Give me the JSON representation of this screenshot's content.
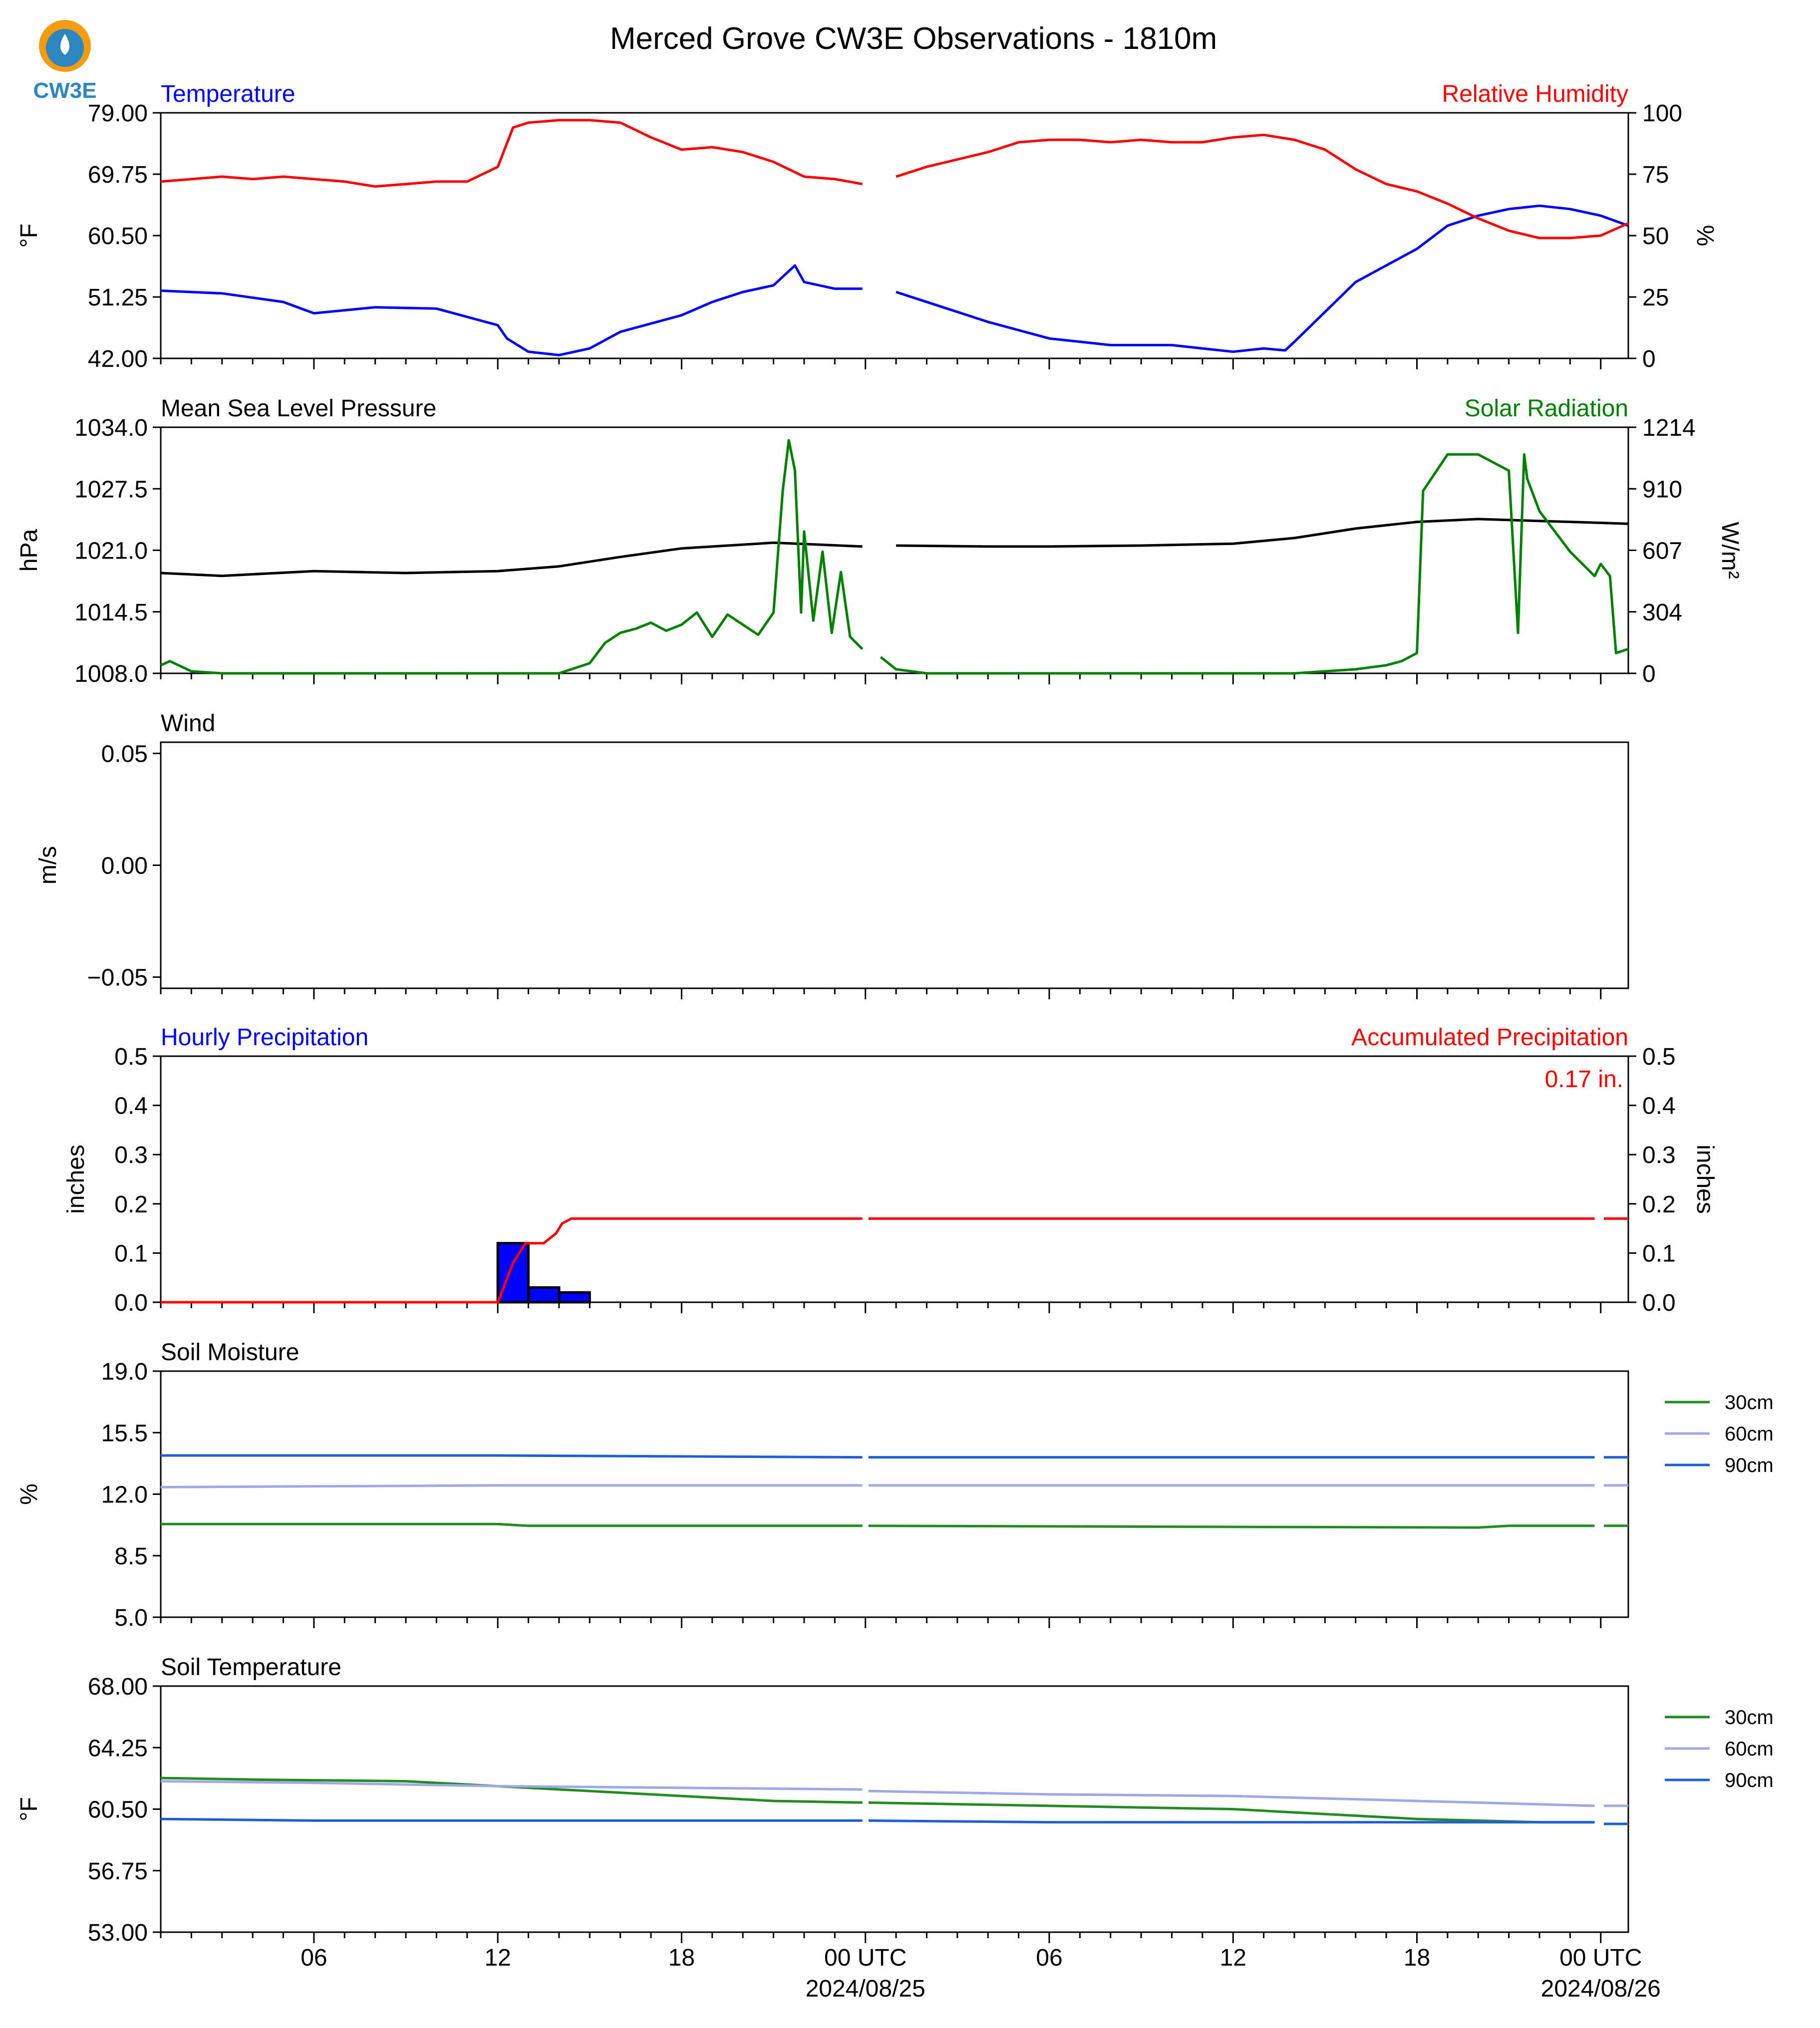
{
  "title": "Merced Grove CW3E Observations - 1810m",
  "logo": {
    "text": "CW3E",
    "colors": [
      "#F39C12",
      "#2E86C1"
    ]
  },
  "x_axis": {
    "major_ticks": [
      {
        "hour": 6,
        "label": "06"
      },
      {
        "hour": 12,
        "label": "12"
      },
      {
        "hour": 18,
        "label": "18"
      },
      {
        "hour": 24,
        "label": "00 UTC",
        "date": "2024/08/25"
      },
      {
        "hour": 30,
        "label": "06"
      },
      {
        "hour": 36,
        "label": "12"
      },
      {
        "hour": 42,
        "label": "18"
      },
      {
        "hour": 48,
        "label": "00 UTC",
        "date": "2024/08/26"
      }
    ],
    "range_hours": [
      1,
      48.9
    ]
  },
  "chart_data": [
    {
      "type": "line",
      "left_title": "Temperature",
      "left_title_color": "#0000FF",
      "right_title": "Relative Humidity",
      "right_title_color": "#FF0000",
      "ylabel": "°F",
      "ylabel_right": "%",
      "ylim": [
        42.0,
        79.0
      ],
      "yticks": [
        "42.00",
        "51.25",
        "60.50",
        "69.75",
        "79.00"
      ],
      "ylim_right": [
        0,
        100
      ],
      "yticks_right": [
        "0",
        "25",
        "50",
        "75",
        "100"
      ],
      "series": [
        {
          "name": "Temperature",
          "axis": "left",
          "color": "#0000FF",
          "x": [
            1,
            3,
            5,
            6,
            8,
            10,
            12,
            12.3,
            13,
            14,
            15,
            16,
            18,
            19,
            20,
            21,
            21.7,
            22,
            23,
            23.9,
            25,
            27,
            28,
            30,
            32,
            34,
            35,
            36,
            37,
            37.7,
            38,
            39,
            40,
            41,
            42,
            43,
            44,
            45,
            46,
            47,
            48,
            48.9
          ],
          "y": [
            52.2,
            51.8,
            50.5,
            48.8,
            49.7,
            49.5,
            47.0,
            45.0,
            43.0,
            42.5,
            43.5,
            46.0,
            48.5,
            50.5,
            52.0,
            53.0,
            56.0,
            53.5,
            52.5,
            52.5,
            52.0,
            49.0,
            47.5,
            45.0,
            44.0,
            44.0,
            43.5,
            43.0,
            43.5,
            43.2,
            44.5,
            49.0,
            53.5,
            56.0,
            58.5,
            62.0,
            63.5,
            64.5,
            65.0,
            64.5,
            63.5,
            62.0
          ]
        },
        {
          "name": "Relative Humidity",
          "axis": "right",
          "color": "#FF0000",
          "x": [
            1,
            3,
            4,
            5,
            7,
            8,
            9,
            10,
            11,
            11.5,
            12,
            12.5,
            13,
            14,
            15,
            16,
            17,
            18,
            19,
            20,
            21,
            22,
            23,
            23.9,
            25,
            26,
            27,
            28,
            29,
            30,
            31,
            32,
            33,
            34,
            35,
            36,
            37,
            38,
            39,
            40,
            41,
            42,
            43,
            44,
            45,
            46,
            47,
            48,
            48.9
          ],
          "y": [
            72,
            74,
            73,
            74,
            72,
            70,
            71,
            72,
            72,
            75,
            78,
            94,
            96,
            97,
            97,
            96,
            90,
            85,
            86,
            84,
            80,
            74,
            73,
            71,
            74,
            78,
            81,
            84,
            88,
            89,
            89,
            88,
            89,
            88,
            88,
            90,
            91,
            89,
            85,
            77,
            71,
            68,
            63,
            57,
            52,
            49,
            49,
            50,
            55
          ]
        }
      ]
    },
    {
      "type": "line",
      "left_title": "Mean Sea Level Pressure",
      "left_title_color": "#000000",
      "right_title": "Solar Radiation",
      "right_title_color": "#008000",
      "ylabel": "hPa",
      "ylabel_right": "W/m²",
      "ylim": [
        1008.0,
        1034.0
      ],
      "yticks": [
        "1008.0",
        "1014.5",
        "1021.0",
        "1027.5",
        "1034.0"
      ],
      "ylim_right": [
        0,
        1214
      ],
      "yticks_right": [
        "0",
        "304",
        "607",
        "910",
        "1214"
      ],
      "series": [
        {
          "name": "Mean Sea Level Pressure",
          "axis": "left",
          "color": "#000000",
          "x": [
            1,
            3,
            6,
            9,
            12,
            14,
            16,
            18,
            21,
            23.9,
            25,
            28,
            30,
            33,
            36,
            38,
            40,
            42,
            44,
            46,
            48,
            48.9
          ],
          "y": [
            1018.6,
            1018.3,
            1018.8,
            1018.6,
            1018.8,
            1019.3,
            1020.3,
            1021.2,
            1021.8,
            1021.4,
            1021.5,
            1021.4,
            1021.4,
            1021.5,
            1021.7,
            1022.3,
            1023.3,
            1024.0,
            1024.3,
            1024.1,
            1023.9,
            1023.8
          ]
        },
        {
          "name": "Solar Radiation",
          "axis": "right",
          "color": "#008000",
          "x": [
            1,
            1.3,
            2,
            3,
            4,
            6,
            8,
            10,
            12,
            14,
            15,
            15.5,
            16,
            16.5,
            17,
            17.5,
            18,
            18.5,
            19,
            19.5,
            20,
            20.5,
            21,
            21.3,
            21.5,
            21.7,
            21.9,
            22,
            22.3,
            22.6,
            22.9,
            23.2,
            23.5,
            23.9,
            24.5,
            25,
            26,
            28,
            32,
            36,
            38,
            40,
            41,
            41.5,
            42,
            42.2,
            43,
            44,
            45,
            45.3,
            45.5,
            45.6,
            46,
            47,
            47.8,
            48,
            48.3,
            48.5,
            48.9
          ],
          "y": [
            40,
            60,
            10,
            0,
            0,
            0,
            0,
            0,
            0,
            0,
            50,
            150,
            200,
            220,
            250,
            210,
            240,
            300,
            180,
            290,
            240,
            190,
            300,
            900,
            1150,
            1000,
            300,
            700,
            260,
            600,
            200,
            500,
            180,
            120,
            80,
            20,
            0,
            0,
            0,
            0,
            0,
            20,
            40,
            60,
            100,
            900,
            1080,
            1080,
            1000,
            200,
            1080,
            960,
            800,
            600,
            480,
            540,
            480,
            100,
            120
          ]
        }
      ]
    },
    {
      "type": "line",
      "left_title": "Wind",
      "left_title_color": "#000000",
      "ylabel": "m/s",
      "ylim": [
        -0.055,
        0.055
      ],
      "yticks": [
        "−0.05",
        "0.00",
        "0.05"
      ],
      "series": []
    },
    {
      "type": "bar",
      "left_title": "Hourly Precipitation",
      "left_title_color": "#0000FF",
      "right_title": "Accumulated Precipitation",
      "right_title_color": "#FF0000",
      "annotation": "0.17 in.",
      "annotation_color": "#FF0000",
      "ylabel": "inches",
      "ylabel_right": "inches",
      "ylim": [
        0.0,
        0.5
      ],
      "yticks": [
        "0.0",
        "0.1",
        "0.2",
        "0.3",
        "0.4",
        "0.5"
      ],
      "ylim_right": [
        0.0,
        0.5
      ],
      "yticks_right": [
        "0.0",
        "0.1",
        "0.2",
        "0.3",
        "0.4",
        "0.5"
      ],
      "bars": {
        "name": "Hourly Precipitation",
        "color": "#0000FF",
        "x_start": [
          12,
          13,
          14
        ],
        "values": [
          0.12,
          0.03,
          0.02
        ]
      },
      "series": [
        {
          "name": "Accumulated Precipitation",
          "axis": "right",
          "color": "#FF0000",
          "x": [
            1,
            12,
            12.5,
            12.9,
            13.5,
            13.9,
            14.1,
            14.4,
            23.9,
            24.1,
            47.8,
            48.1,
            48.9
          ],
          "y": [
            0,
            0,
            0.08,
            0.12,
            0.12,
            0.14,
            0.16,
            0.17,
            0.17,
            0.17,
            0.17,
            0.17,
            0.17
          ]
        }
      ]
    },
    {
      "type": "line",
      "left_title": "Soil Moisture",
      "left_title_color": "#000000",
      "ylabel": "%",
      "ylim": [
        5.0,
        19.0
      ],
      "yticks": [
        "5.0",
        "8.5",
        "12.0",
        "15.5",
        "19.0"
      ],
      "legend": "outside-right",
      "series": [
        {
          "name": "30cm",
          "axis": "left",
          "color": "#228B22",
          "x": [
            1,
            12,
            13,
            23.9,
            24.1,
            44,
            45,
            47.8,
            48.1,
            48.9
          ],
          "y": [
            10.3,
            10.3,
            10.2,
            10.2,
            10.2,
            10.1,
            10.2,
            10.2,
            10.2,
            10.2
          ]
        },
        {
          "name": "60cm",
          "axis": "left",
          "color": "#A0A8E8",
          "x": [
            1,
            12,
            23.9,
            24.1,
            47.8,
            48.1,
            48.9
          ],
          "y": [
            12.4,
            12.5,
            12.5,
            12.5,
            12.5,
            12.5,
            12.5
          ]
        },
        {
          "name": "90cm",
          "axis": "left",
          "color": "#1E5FD8",
          "x": [
            1,
            12,
            23.9,
            24.1,
            47.8,
            48.1,
            48.9
          ],
          "y": [
            14.2,
            14.2,
            14.1,
            14.1,
            14.1,
            14.1,
            14.1
          ]
        }
      ]
    },
    {
      "type": "line",
      "left_title": "Soil Temperature",
      "left_title_color": "#000000",
      "ylabel": "°F",
      "ylim": [
        53.0,
        68.0
      ],
      "yticks": [
        "53.00",
        "56.75",
        "60.50",
        "64.25",
        "68.00"
      ],
      "legend": "outside-right",
      "series": [
        {
          "name": "30cm",
          "axis": "left",
          "color": "#228B22",
          "x": [
            1,
            4,
            9,
            11,
            13,
            15,
            17,
            19,
            21,
            23.9,
            24.1,
            27,
            30,
            33,
            36,
            38,
            40,
            42,
            44,
            46,
            47.8
          ],
          "y": [
            62.4,
            62.3,
            62.2,
            62.0,
            61.8,
            61.6,
            61.4,
            61.2,
            61.0,
            60.9,
            60.9,
            60.8,
            60.7,
            60.6,
            60.5,
            60.3,
            60.1,
            59.9,
            59.8,
            59.7,
            59.7
          ]
        },
        {
          "name": "60cm",
          "axis": "left",
          "color": "#A0A8E8",
          "x": [
            1,
            6,
            12,
            18,
            23.9,
            24.1,
            30,
            36,
            40,
            44,
            47.8,
            48.1,
            48.9
          ],
          "y": [
            62.2,
            62.1,
            61.9,
            61.8,
            61.7,
            61.6,
            61.4,
            61.3,
            61.1,
            60.9,
            60.7,
            60.7,
            60.7
          ]
        },
        {
          "name": "90cm",
          "axis": "left",
          "color": "#1E5FD8",
          "x": [
            1,
            6,
            12,
            18,
            23.9,
            24.1,
            30,
            36,
            42,
            47.8,
            48.1,
            48.9
          ],
          "y": [
            59.9,
            59.8,
            59.8,
            59.8,
            59.8,
            59.8,
            59.7,
            59.7,
            59.7,
            59.7,
            59.6,
            59.6
          ]
        }
      ]
    }
  ]
}
